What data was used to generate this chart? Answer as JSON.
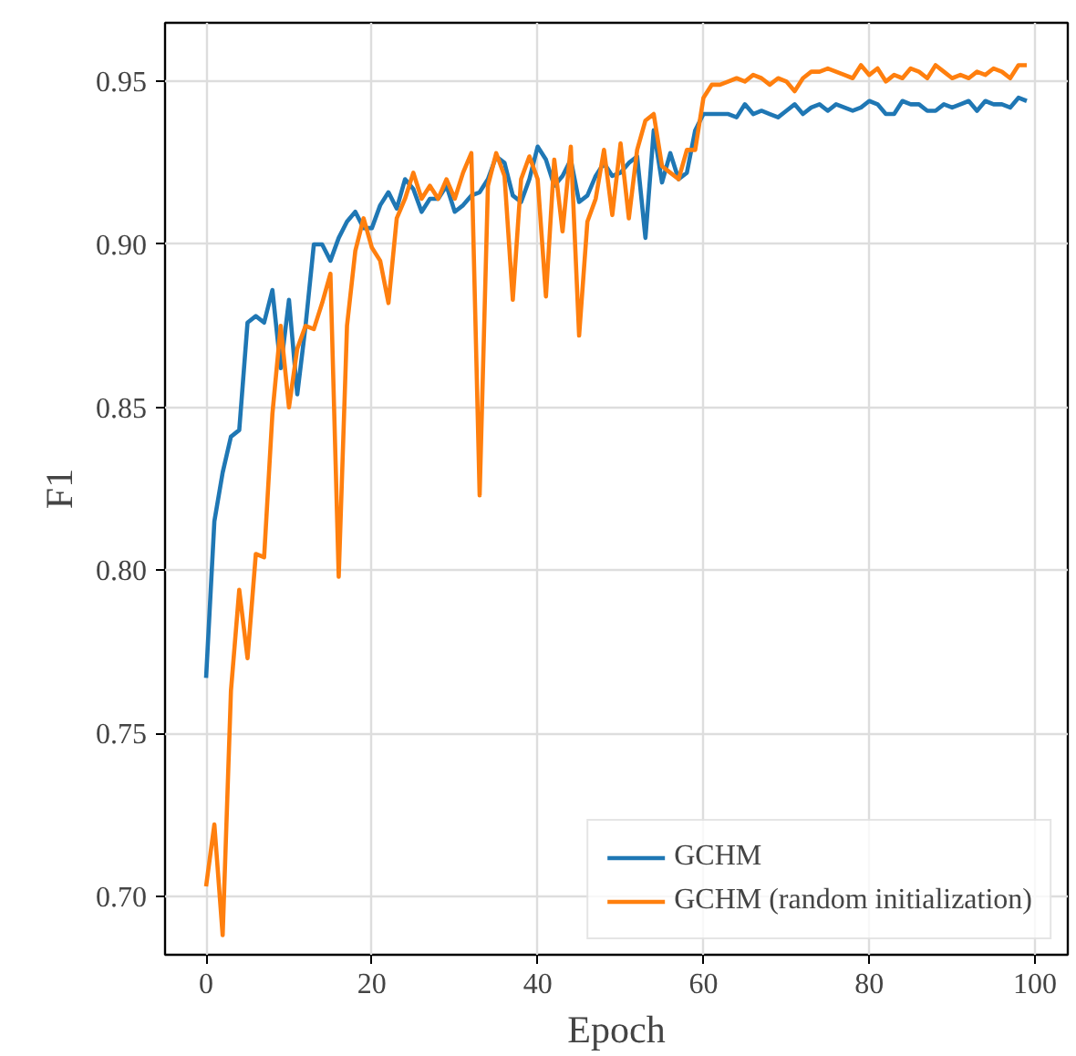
{
  "chart_data": {
    "type": "line",
    "xlabel": "Epoch",
    "ylabel": "F1",
    "x": [
      0,
      1,
      2,
      3,
      4,
      5,
      6,
      7,
      8,
      9,
      10,
      11,
      12,
      13,
      14,
      15,
      16,
      17,
      18,
      19,
      20,
      21,
      22,
      23,
      24,
      25,
      26,
      27,
      28,
      29,
      30,
      31,
      32,
      33,
      34,
      35,
      36,
      37,
      38,
      39,
      40,
      41,
      42,
      43,
      44,
      45,
      46,
      47,
      48,
      49,
      50,
      51,
      52,
      53,
      54,
      55,
      56,
      57,
      58,
      59,
      60,
      61,
      62,
      63,
      64,
      65,
      66,
      67,
      68,
      69,
      70,
      71,
      72,
      73,
      74,
      75,
      76,
      77,
      78,
      79,
      80,
      81,
      82,
      83,
      84,
      85,
      86,
      87,
      88,
      89,
      90,
      91,
      92,
      93,
      94,
      95,
      96,
      97,
      98,
      99
    ],
    "series": [
      {
        "name": "GCHM",
        "color": "#1f77b4",
        "values": [
          0.767,
          0.815,
          0.83,
          0.841,
          0.843,
          0.876,
          0.878,
          0.876,
          0.886,
          0.862,
          0.883,
          0.854,
          0.875,
          0.9,
          0.9,
          0.895,
          0.902,
          0.907,
          0.91,
          0.905,
          0.905,
          0.912,
          0.916,
          0.911,
          0.92,
          0.917,
          0.91,
          0.914,
          0.914,
          0.918,
          0.91,
          0.912,
          0.915,
          0.916,
          0.92,
          0.927,
          0.925,
          0.915,
          0.913,
          0.92,
          0.93,
          0.926,
          0.918,
          0.921,
          0.926,
          0.913,
          0.915,
          0.921,
          0.925,
          0.921,
          0.922,
          0.925,
          0.927,
          0.902,
          0.935,
          0.919,
          0.928,
          0.92,
          0.922,
          0.935,
          0.94,
          0.94,
          0.94,
          0.94,
          0.939,
          0.943,
          0.94,
          0.941,
          0.94,
          0.939,
          0.941,
          0.943,
          0.94,
          0.942,
          0.943,
          0.941,
          0.943,
          0.942,
          0.941,
          0.942,
          0.944,
          0.943,
          0.94,
          0.94,
          0.944,
          0.943,
          0.943,
          0.941,
          0.941,
          0.943,
          0.942,
          0.943,
          0.944,
          0.941,
          0.944,
          0.943,
          0.943,
          0.942,
          0.945,
          0.944
        ]
      },
      {
        "name": "GCHM (random initialization)",
        "color": "#ff7f0e",
        "values": [
          0.703,
          0.722,
          0.688,
          0.763,
          0.794,
          0.773,
          0.805,
          0.804,
          0.848,
          0.875,
          0.85,
          0.868,
          0.875,
          0.874,
          0.882,
          0.891,
          0.798,
          0.875,
          0.898,
          0.908,
          0.899,
          0.895,
          0.882,
          0.908,
          0.914,
          0.922,
          0.914,
          0.918,
          0.914,
          0.92,
          0.914,
          0.922,
          0.928,
          0.823,
          0.918,
          0.928,
          0.921,
          0.883,
          0.92,
          0.927,
          0.92,
          0.884,
          0.926,
          0.904,
          0.93,
          0.872,
          0.907,
          0.914,
          0.929,
          0.909,
          0.931,
          0.908,
          0.929,
          0.938,
          0.94,
          0.924,
          0.922,
          0.92,
          0.929,
          0.929,
          0.945,
          0.949,
          0.949,
          0.95,
          0.951,
          0.95,
          0.952,
          0.951,
          0.949,
          0.951,
          0.95,
          0.947,
          0.951,
          0.953,
          0.953,
          0.954,
          0.953,
          0.952,
          0.951,
          0.955,
          0.952,
          0.954,
          0.95,
          0.952,
          0.951,
          0.954,
          0.953,
          0.951,
          0.955,
          0.953,
          0.951,
          0.952,
          0.951,
          0.953,
          0.952,
          0.954,
          0.953,
          0.951,
          0.955,
          0.955
        ]
      }
    ],
    "xlim": [
      -4.95,
      103.95
    ],
    "ylim": [
      0.682,
      0.968
    ],
    "xticks": [
      0,
      20,
      40,
      60,
      80,
      100
    ],
    "yticks": [
      {
        "value": 0.7,
        "label": "0.70"
      },
      {
        "value": 0.75,
        "label": "0.75"
      },
      {
        "value": 0.8,
        "label": "0.80"
      },
      {
        "value": 0.85,
        "label": "0.85"
      },
      {
        "value": 0.9,
        "label": "0.90"
      },
      {
        "value": 0.95,
        "label": "0.95"
      }
    ],
    "grid": true,
    "legend": "bottom right",
    "line_style": "solid",
    "marker": "none"
  }
}
